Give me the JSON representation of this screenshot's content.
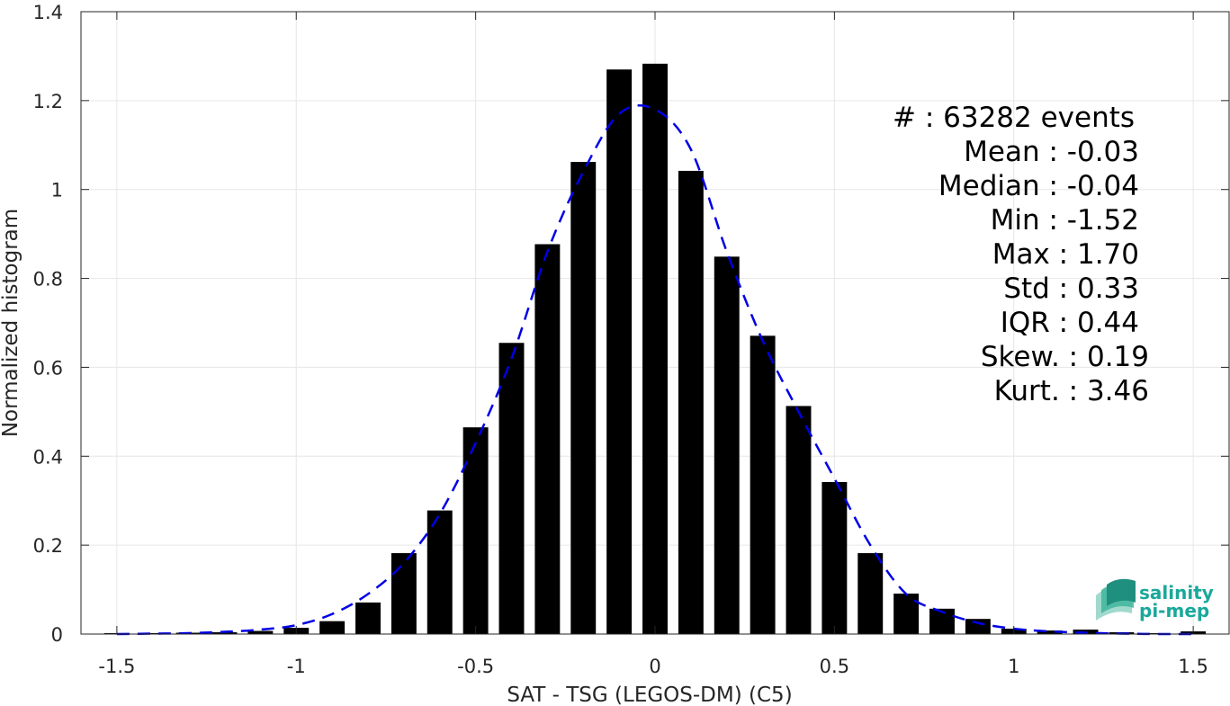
{
  "chart_data": {
    "type": "bar",
    "xlabel": "SAT - TSG (LEGOS-DM) (C5)",
    "ylabel": "Normalized histogram",
    "xlim": [
      -1.6,
      1.6
    ],
    "ylim": [
      0,
      1.4
    ],
    "xticks": [
      "-1.5",
      "-1",
      "-0.5",
      "0",
      "0.5",
      "1",
      "1.5"
    ],
    "yticks": [
      "0",
      "0.2",
      "0.4",
      "0.6",
      "0.8",
      "1",
      "1.2",
      "1.4"
    ],
    "grid": true,
    "bar_width": 0.07,
    "bar_color": "#000000",
    "x": [
      -1.5,
      -1.4,
      -1.3,
      -1.2,
      -1.1,
      -1.0,
      -0.9,
      -0.8,
      -0.7,
      -0.6,
      -0.5,
      -0.4,
      -0.3,
      -0.2,
      -0.1,
      0.0,
      0.1,
      0.2,
      0.3,
      0.4,
      0.5,
      0.6,
      0.7,
      0.8,
      0.9,
      1.0,
      1.1,
      1.2,
      1.3,
      1.4,
      1.5
    ],
    "values": [
      0.002,
      0.002,
      0.003,
      0.004,
      0.007,
      0.014,
      0.029,
      0.071,
      0.182,
      0.278,
      0.465,
      0.655,
      0.877,
      1.062,
      1.27,
      1.283,
      1.042,
      0.849,
      0.671,
      0.513,
      0.342,
      0.182,
      0.091,
      0.057,
      0.034,
      0.012,
      0.008,
      0.01,
      0.004,
      0.002,
      0.006
    ],
    "fit_curve": {
      "style": "dashed",
      "color": "#0000e6",
      "x": [
        -1.5,
        -1.4,
        -1.3,
        -1.2,
        -1.1,
        -1.0,
        -0.9,
        -0.8,
        -0.7,
        -0.6,
        -0.5,
        -0.4,
        -0.3,
        -0.2,
        -0.1,
        0.0,
        0.1,
        0.2,
        0.3,
        0.4,
        0.5,
        0.6,
        0.7,
        0.8,
        0.9,
        1.0,
        1.1,
        1.2,
        1.3,
        1.4,
        1.5
      ],
      "y": [
        0.0,
        0.001,
        0.002,
        0.005,
        0.01,
        0.02,
        0.045,
        0.09,
        0.16,
        0.27,
        0.43,
        0.62,
        0.86,
        1.04,
        1.17,
        1.18,
        1.09,
        0.86,
        0.66,
        0.5,
        0.35,
        0.2,
        0.09,
        0.05,
        0.025,
        0.012,
        0.006,
        0.003,
        0.001,
        0.0,
        0.0
      ]
    },
    "stats": [
      {
        "label": "#  : 63282 events"
      },
      {
        "label": "Mean : -0.03"
      },
      {
        "label": "Median : -0.04"
      },
      {
        "label": "Min : -1.52"
      },
      {
        "label": "Max : 1.70"
      },
      {
        "label": "Std : 0.33"
      },
      {
        "label": "IQR : 0.44"
      },
      {
        "label": "Skew. : 0.19"
      },
      {
        "label": "Kurt. : 3.46"
      }
    ]
  },
  "logo": {
    "line1": "salinity",
    "line2": "pi-mep",
    "color": "#1aa89a"
  }
}
